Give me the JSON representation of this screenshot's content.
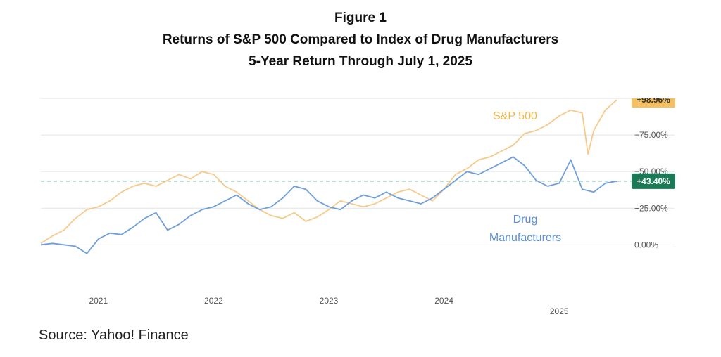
{
  "chart_data": {
    "type": "line",
    "title": "Figure 1",
    "subtitle": "Returns of S&P 500 Compared to Index of Drug Manufacturers",
    "subtitle2": "5-Year Return Through July 1, 2025",
    "xlabel": "",
    "ylabel": "",
    "x_range": [
      2020.5,
      2025.5
    ],
    "ylim": [
      -20,
      100
    ],
    "grid": true,
    "legend": "inline",
    "x_ticks": [
      {
        "value": 2021.0,
        "label": "2021"
      },
      {
        "value": 2022.0,
        "label": "2022"
      },
      {
        "value": 2023.0,
        "label": "2023"
      },
      {
        "value": 2024.0,
        "label": "2024"
      },
      {
        "value": 2025.0,
        "label": "2025"
      }
    ],
    "y_ticks": [
      {
        "value": 75,
        "label": "+75.00%"
      },
      {
        "value": 50,
        "label": "+50.00%"
      },
      {
        "value": 25,
        "label": "+25.00%"
      },
      {
        "value": 0,
        "label": "0.00%"
      }
    ],
    "reference_line": {
      "value": 43.4,
      "color": "#7fbfa8"
    },
    "series": [
      {
        "name": "S&P 500",
        "color": "#f7c98a",
        "end_label": "+98.96%",
        "badge_color": "#f5c063",
        "x": [
          2020.5,
          2020.6,
          2020.7,
          2020.8,
          2020.9,
          2021.0,
          2021.1,
          2021.2,
          2021.3,
          2021.4,
          2021.5,
          2021.6,
          2021.7,
          2021.8,
          2021.9,
          2022.0,
          2022.1,
          2022.2,
          2022.3,
          2022.4,
          2022.5,
          2022.6,
          2022.7,
          2022.8,
          2022.9,
          2023.0,
          2023.1,
          2023.2,
          2023.3,
          2023.4,
          2023.5,
          2023.6,
          2023.7,
          2023.8,
          2023.9,
          2024.0,
          2024.1,
          2024.2,
          2024.3,
          2024.4,
          2024.5,
          2024.6,
          2024.7,
          2024.8,
          2024.9,
          2025.0,
          2025.1,
          2025.2,
          2025.25,
          2025.3,
          2025.4,
          2025.5
        ],
        "values": [
          1,
          6,
          10,
          18,
          24,
          26,
          30,
          36,
          40,
          42,
          40,
          44,
          48,
          45,
          50,
          48,
          40,
          36,
          30,
          24,
          20,
          18,
          22,
          16,
          19,
          24,
          30,
          28,
          26,
          28,
          32,
          36,
          38,
          34,
          30,
          38,
          48,
          52,
          58,
          60,
          64,
          68,
          76,
          78,
          82,
          88,
          92,
          90,
          62,
          78,
          92,
          98.96
        ]
      },
      {
        "name": "Drug Manufacturers",
        "color": "#6f9fdb",
        "end_label": "+43.40%",
        "badge_color": "#1a7a55",
        "x": [
          2020.5,
          2020.6,
          2020.7,
          2020.8,
          2020.9,
          2021.0,
          2021.1,
          2021.2,
          2021.3,
          2021.4,
          2021.5,
          2021.6,
          2021.7,
          2021.8,
          2021.9,
          2022.0,
          2022.1,
          2022.2,
          2022.3,
          2022.4,
          2022.5,
          2022.6,
          2022.7,
          2022.8,
          2022.9,
          2023.0,
          2023.1,
          2023.2,
          2023.3,
          2023.4,
          2023.5,
          2023.6,
          2023.7,
          2023.8,
          2023.9,
          2024.0,
          2024.1,
          2024.2,
          2024.3,
          2024.4,
          2024.5,
          2024.6,
          2024.7,
          2024.8,
          2024.9,
          2025.0,
          2025.1,
          2025.2,
          2025.3,
          2025.4,
          2025.5
        ],
        "values": [
          0,
          1,
          0,
          -1,
          -6,
          4,
          8,
          7,
          12,
          18,
          22,
          10,
          14,
          20,
          24,
          26,
          30,
          34,
          28,
          24,
          26,
          32,
          40,
          38,
          30,
          26,
          24,
          30,
          34,
          32,
          36,
          32,
          30,
          28,
          32,
          38,
          44,
          50,
          48,
          52,
          56,
          60,
          54,
          44,
          40,
          42,
          58,
          38,
          36,
          42,
          43.4
        ]
      }
    ]
  },
  "source_text": "Source: Yahoo! Finance"
}
